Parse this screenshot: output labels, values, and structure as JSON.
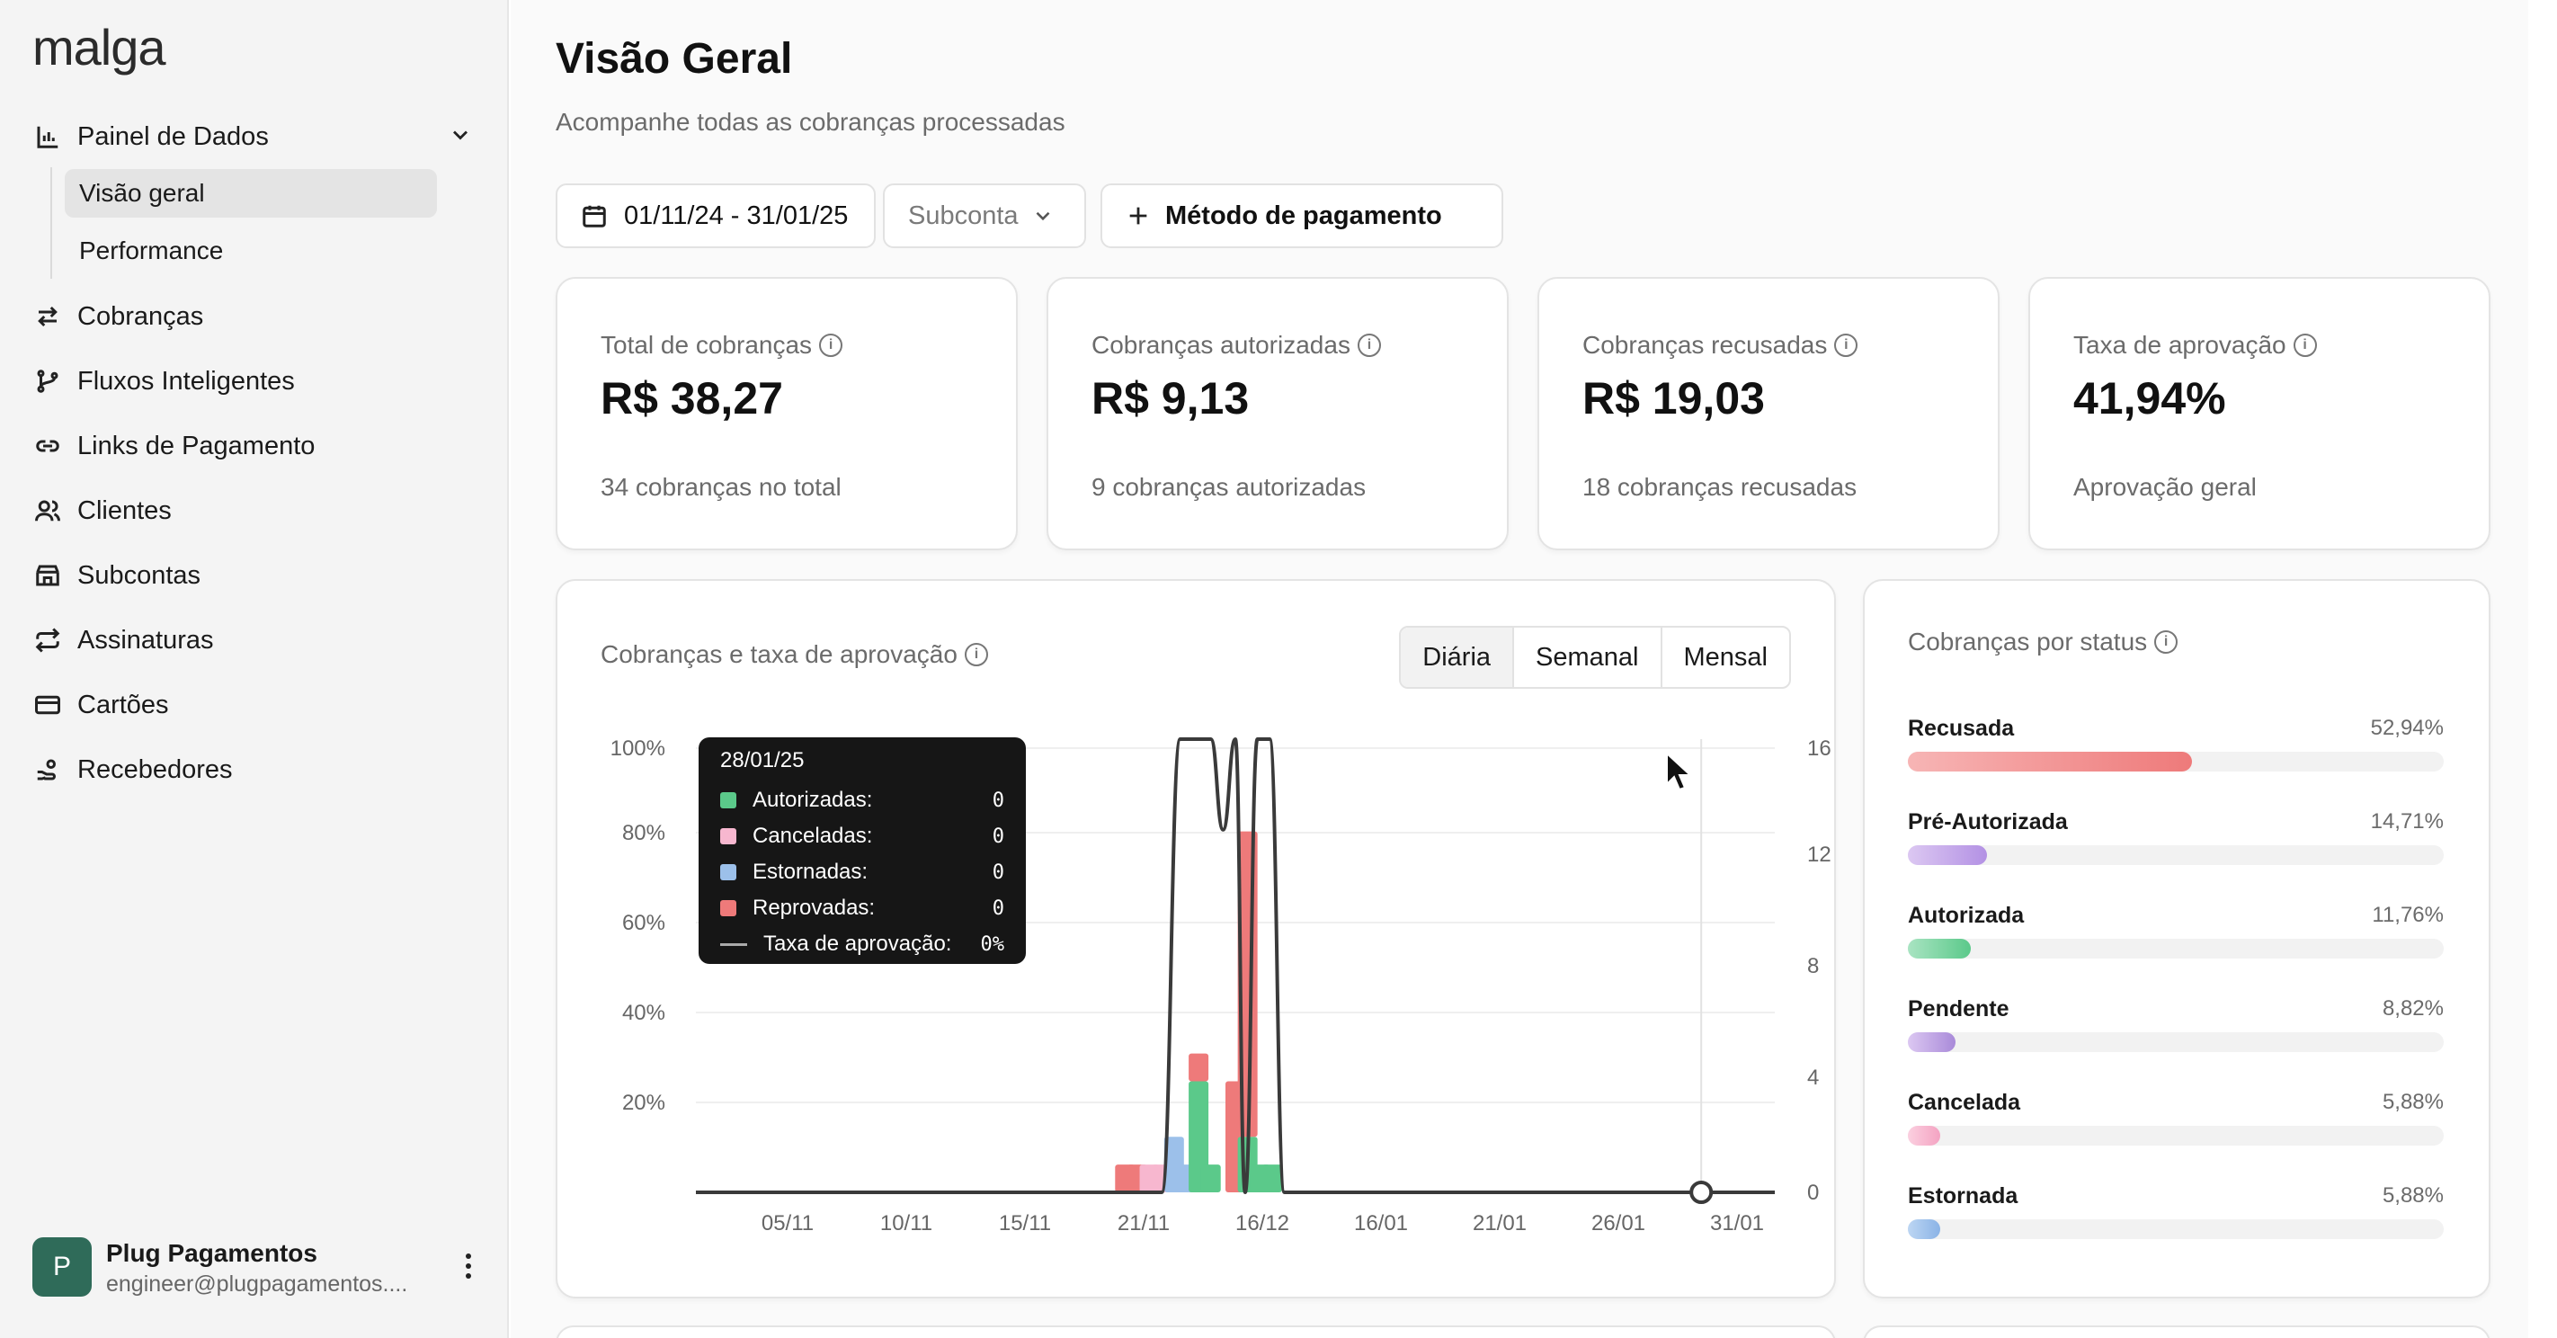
{
  "sidebar": {
    "logo": "malga",
    "dashboard": {
      "label": "Painel de Dados",
      "sub": [
        "Visão geral",
        "Performance"
      ]
    },
    "items": [
      "Cobranças",
      "Fluxos Inteligentes",
      "Links de Pagamento",
      "Clientes",
      "Subcontas",
      "Assinaturas",
      "Cartões",
      "Recebedores"
    ],
    "user": {
      "avatar": "P",
      "name": "Plug Pagamentos",
      "email": "engineer@plugpagamentos...."
    }
  },
  "header": {
    "title": "Visão Geral",
    "subtitle": "Acompanhe todas as cobranças processadas"
  },
  "filters": {
    "date_range": "01/11/24 - 31/01/25",
    "subaccount": "Subconta",
    "payment_method": "Método de pagamento"
  },
  "kpis": [
    {
      "label": "Total de cobranças",
      "value": "R$ 38,27",
      "foot": "34 cobranças no total"
    },
    {
      "label": "Cobranças autorizadas",
      "value": "R$ 9,13",
      "foot": "9 cobranças autorizadas"
    },
    {
      "label": "Cobranças recusadas",
      "value": "R$ 19,03",
      "foot": "18 cobranças recusadas"
    },
    {
      "label": "Taxa de aprovação",
      "value": "41,94%",
      "foot": "Aprovação geral"
    }
  ],
  "chart_card": {
    "title": "Cobranças e taxa de aprovação",
    "periods": [
      "Diária",
      "Semanal",
      "Mensal"
    ],
    "selected_period": "Diária",
    "tooltip": {
      "date": "28/01/25",
      "rows": [
        {
          "label": "Autorizadas:",
          "value": "0",
          "color": "#5bc98a"
        },
        {
          "label": "Canceladas:",
          "value": "0",
          "color": "#f7b7cf"
        },
        {
          "label": "Estornadas:",
          "value": "0",
          "color": "#9cc0ea"
        },
        {
          "label": "Reprovadas:",
          "value": "0",
          "color": "#ee7a7a"
        }
      ],
      "rate_label": "Taxa de aprovação:",
      "rate_value": "0%"
    }
  },
  "chart_data": {
    "type": "bar",
    "x_ticks": [
      "05/11",
      "10/11",
      "15/11",
      "21/11",
      "16/12",
      "16/01",
      "21/01",
      "26/01",
      "31/01"
    ],
    "y_left_ticks": [
      "100%",
      "80%",
      "60%",
      "40%",
      "20%"
    ],
    "y_right_ticks": [
      "16",
      "12",
      "8",
      "4",
      "0"
    ],
    "ylim_right": [
      0,
      16
    ],
    "ylim_left": [
      0,
      100
    ],
    "grid": true,
    "bars": [
      {
        "day": 35,
        "autorizadas": 0,
        "canceladas": 0,
        "estornadas": 0,
        "reprovadas": 1
      },
      {
        "day": 36,
        "autorizadas": 0,
        "canceladas": 0,
        "estornadas": 0,
        "reprovadas": 1
      },
      {
        "day": 37,
        "autorizadas": 0,
        "canceladas": 1,
        "estornadas": 0,
        "reprovadas": 0
      },
      {
        "day": 38,
        "autorizadas": 0,
        "canceladas": 1,
        "estornadas": 0,
        "reprovadas": 0
      },
      {
        "day": 39,
        "autorizadas": 0,
        "canceladas": 0,
        "estornadas": 2,
        "reprovadas": 0
      },
      {
        "day": 40,
        "autorizadas": 0,
        "canceladas": 0,
        "estornadas": 1,
        "reprovadas": 0
      },
      {
        "day": 41,
        "autorizadas": 4,
        "canceladas": 0,
        "estornadas": 0,
        "reprovadas": 1
      },
      {
        "day": 42,
        "autorizadas": 1,
        "canceladas": 0,
        "estornadas": 0,
        "reprovadas": 0
      },
      {
        "day": 44,
        "autorizadas": 0,
        "canceladas": 0,
        "estornadas": 0,
        "reprovadas": 4
      },
      {
        "day": 45,
        "autorizadas": 2,
        "canceladas": 0,
        "estornadas": 0,
        "reprovadas": 11
      },
      {
        "day": 46,
        "autorizadas": 1,
        "canceladas": 0,
        "estornadas": 0,
        "reprovadas": 0
      },
      {
        "day": 47,
        "autorizadas": 1,
        "canceladas": 0,
        "estornadas": 0,
        "reprovadas": 0
      }
    ],
    "approval_rate": [
      {
        "day": 0,
        "rate": 0
      },
      {
        "day": 38,
        "rate": 0
      },
      {
        "day": 39.5,
        "rate": 100
      },
      {
        "day": 42,
        "rate": 100
      },
      {
        "day": 43,
        "rate": 80
      },
      {
        "day": 44,
        "rate": 100
      },
      {
        "day": 44.8,
        "rate": 0
      },
      {
        "day": 45.8,
        "rate": 100
      },
      {
        "day": 46.8,
        "rate": 100
      },
      {
        "day": 48,
        "rate": 0
      },
      {
        "day": 88,
        "rate": 0
      }
    ],
    "hover_day": 82
  },
  "status_card": {
    "title": "Cobranças por status",
    "items": [
      {
        "name": "Recusada",
        "pct_label": "52,94%",
        "pct": 52.94,
        "colors": [
          "#f7b5b5",
          "#ee7a7a"
        ]
      },
      {
        "name": "Pré-Autorizada",
        "pct_label": "14,71%",
        "pct": 14.71,
        "colors": [
          "#dcc8f2",
          "#b391e4"
        ]
      },
      {
        "name": "Autorizada",
        "pct_label": "11,76%",
        "pct": 11.76,
        "colors": [
          "#a9e4c2",
          "#5bc98a"
        ]
      },
      {
        "name": "Pendente",
        "pct_label": "8,82%",
        "pct": 8.82,
        "colors": [
          "#dcc8f2",
          "#a98ad9"
        ]
      },
      {
        "name": "Cancelada",
        "pct_label": "5,88%",
        "pct": 5.88,
        "colors": [
          "#fbd0e0",
          "#f4a3c2"
        ]
      },
      {
        "name": "Estornada",
        "pct_label": "5,88%",
        "pct": 5.88,
        "colors": [
          "#bdd6f3",
          "#8ab3e6"
        ]
      }
    ]
  }
}
